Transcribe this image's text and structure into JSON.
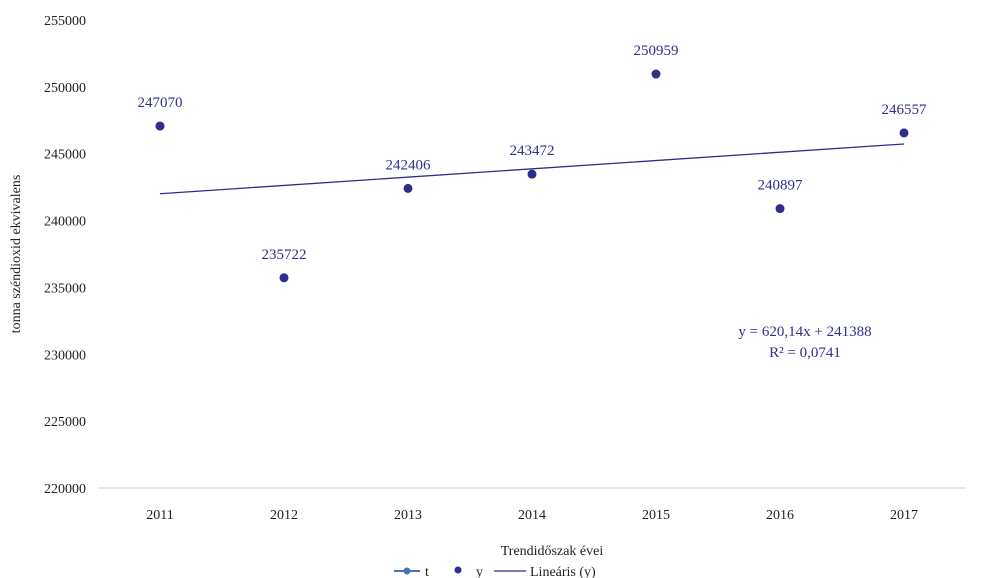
{
  "chart_data": {
    "type": "scatter",
    "title": "",
    "xlabel": "Trendidőszak évei",
    "ylabel": "tonna széndioxid ekvivalens",
    "categories": [
      "2011",
      "2012",
      "2013",
      "2014",
      "2015",
      "2016",
      "2017"
    ],
    "ylim": [
      220000,
      255000
    ],
    "yticks": [
      "220000",
      "225000",
      "230000",
      "235000",
      "240000",
      "245000",
      "250000",
      "255000"
    ],
    "grid": false,
    "legend_position": "bottom",
    "series": [
      {
        "name": "y",
        "values": [
          247070,
          235722,
          242406,
          243472,
          250959,
          240897,
          246557
        ],
        "labels": [
          "247070",
          "235722",
          "242406",
          "243472",
          "250959",
          "240897",
          "246557"
        ],
        "color": "#2e2e8c"
      }
    ],
    "trendline": {
      "name": "Lineáris (y)",
      "slope": 620.14,
      "intercept": 241388,
      "equation": "y = 620,14x + 241388",
      "r_squared": "R² = 0,0741",
      "color": "#2e2e8c"
    },
    "legend": [
      {
        "name": "t",
        "marker": "line-dot",
        "color": "#4a72b8"
      },
      {
        "name": "y",
        "marker": "dot",
        "color": "#2e2e8c"
      },
      {
        "name": "Lineáris (y)",
        "marker": "line",
        "color": "#2e2e8c"
      }
    ]
  }
}
